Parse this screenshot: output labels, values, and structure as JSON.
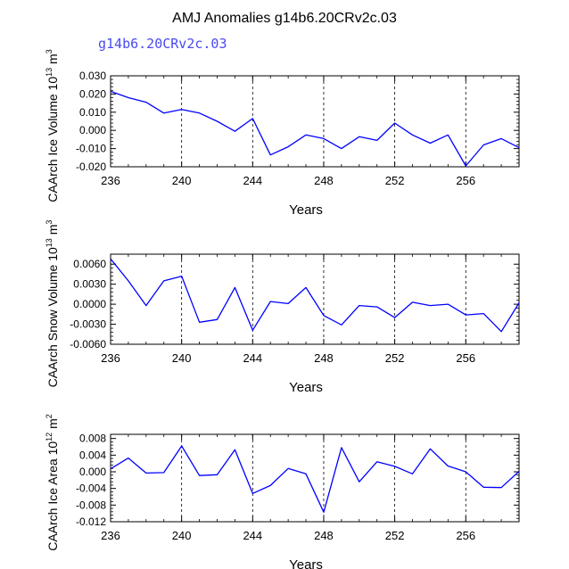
{
  "figure": {
    "title": "AMJ Anomalies g14b6.20CRv2c.03",
    "subtitle": "g14b6.20CRv2c.03",
    "line_color": "#0000ff",
    "subtitle_color": "#4a4af0"
  },
  "chart_data": [
    {
      "type": "line",
      "ylabel": "CAArch Ice Volume 10",
      "ylabel_exp": "13",
      "ylabel_unit": "m",
      "ylabel_unit_exp": "3",
      "xlabel": "Years",
      "xlim": [
        236,
        259
      ],
      "ylim": [
        -0.02,
        0.03
      ],
      "xticks": [
        236,
        240,
        244,
        248,
        252,
        256
      ],
      "xtick_labels": [
        "236",
        "240",
        "244",
        "248",
        "252",
        "256"
      ],
      "yticks": [
        -0.02,
        -0.01,
        0.0,
        0.01,
        0.02,
        0.03
      ],
      "ytick_labels": [
        "-0.020",
        "-0.010",
        "0.000",
        "0.010",
        "0.020",
        "0.030"
      ],
      "grid": "dashed vertical at 240, 244, 248, 252, 256",
      "x": [
        236,
        237,
        238,
        239,
        240,
        241,
        242,
        243,
        244,
        245,
        246,
        247,
        248,
        249,
        250,
        251,
        252,
        253,
        254,
        255,
        256,
        257,
        258,
        259
      ],
      "y": [
        0.0215,
        0.018,
        0.0155,
        0.0095,
        0.0115,
        0.0095,
        0.005,
        -0.0005,
        0.0065,
        -0.0135,
        -0.009,
        -0.0025,
        -0.0045,
        -0.01,
        -0.0035,
        -0.0055,
        0.004,
        -0.0025,
        -0.007,
        -0.0025,
        -0.0195,
        -0.008,
        -0.0045,
        -0.0095
      ]
    },
    {
      "type": "line",
      "ylabel": "CAArch Snow Volume 10",
      "ylabel_exp": "13",
      "ylabel_unit": "m",
      "ylabel_unit_exp": "3",
      "xlabel": "Years",
      "xlim": [
        236,
        259
      ],
      "ylim": [
        -0.006,
        0.0075
      ],
      "xticks": [
        236,
        240,
        244,
        248,
        252,
        256
      ],
      "xtick_labels": [
        "236",
        "240",
        "244",
        "248",
        "252",
        "256"
      ],
      "yticks": [
        -0.006,
        -0.003,
        0.0,
        0.003,
        0.006
      ],
      "ytick_labels": [
        "-0.0060",
        "-0.0030",
        "0.0000",
        "0.0030",
        "0.0060"
      ],
      "grid": "dashed vertical at 240, 244, 248, 252, 256",
      "x": [
        236,
        237,
        238,
        239,
        240,
        241,
        242,
        243,
        244,
        245,
        246,
        247,
        248,
        249,
        250,
        251,
        252,
        253,
        254,
        255,
        256,
        257,
        258,
        259
      ],
      "y": [
        0.0068,
        0.0035,
        -0.0002,
        0.0035,
        0.0042,
        -0.0027,
        -0.0023,
        0.0025,
        -0.0039,
        0.0004,
        0.0001,
        0.0025,
        -0.0017,
        -0.0031,
        -0.0002,
        -0.0004,
        -0.002,
        0.0003,
        -0.0002,
        0.0,
        -0.0016,
        -0.0014,
        -0.0041,
        0.0002
      ]
    },
    {
      "type": "line",
      "ylabel": "CAArch Ice Area 10",
      "ylabel_exp": "12",
      "ylabel_unit": "m",
      "ylabel_unit_exp": "2",
      "xlabel": "Years",
      "xlim": [
        236,
        259
      ],
      "ylim": [
        -0.012,
        0.009
      ],
      "xticks": [
        236,
        240,
        244,
        248,
        252,
        256
      ],
      "xtick_labels": [
        "236",
        "240",
        "244",
        "248",
        "252",
        "256"
      ],
      "yticks": [
        -0.012,
        -0.008,
        -0.004,
        0.0,
        0.004,
        0.008
      ],
      "ytick_labels": [
        "-0.012",
        "-0.008",
        "-0.004",
        "0.000",
        "0.004",
        "0.008"
      ],
      "grid": "dashed vertical at 240, 244, 248, 252, 256",
      "x": [
        236,
        237,
        238,
        239,
        240,
        241,
        242,
        243,
        244,
        245,
        246,
        247,
        248,
        249,
        250,
        251,
        252,
        253,
        254,
        255,
        256,
        257,
        258,
        259
      ],
      "y": [
        0.0007,
        0.0033,
        -0.0003,
        -0.0002,
        0.0062,
        -0.0009,
        -0.0007,
        0.0053,
        -0.0052,
        -0.0033,
        0.0008,
        -0.0005,
        -0.0097,
        0.0058,
        -0.0024,
        0.0024,
        0.0013,
        -0.0005,
        0.0055,
        0.0014,
        0.0,
        -0.0037,
        -0.0038,
        0.0001
      ]
    }
  ]
}
